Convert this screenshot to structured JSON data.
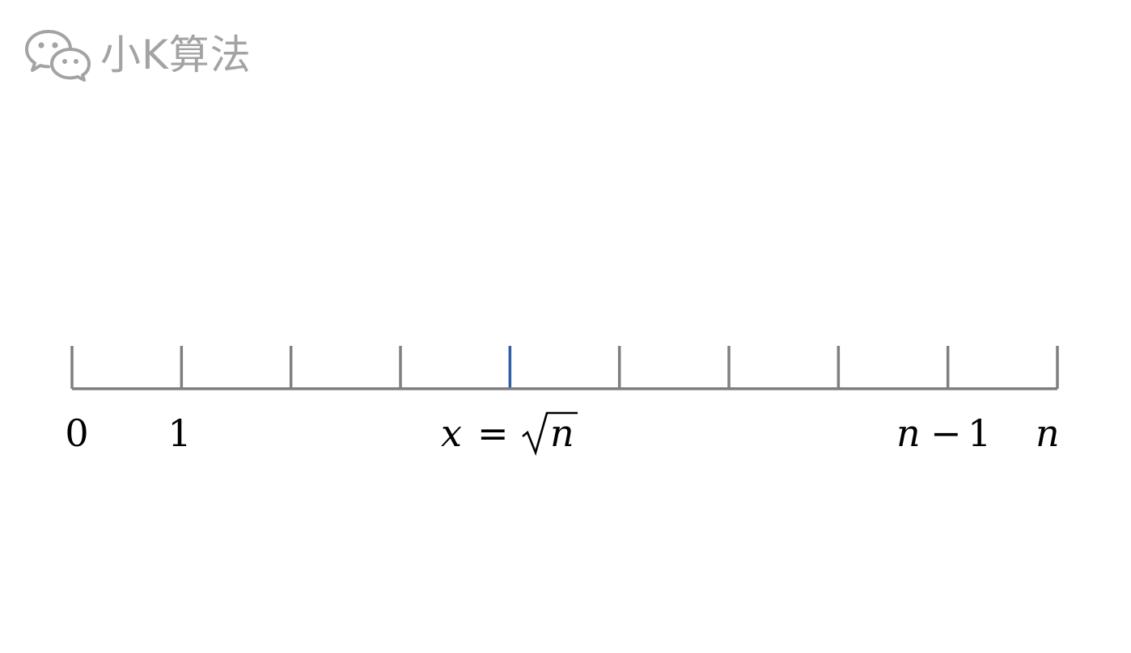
{
  "watermark": {
    "icon": "wechat-icon",
    "text": "小K算法"
  },
  "number_line": {
    "tick_count": 10,
    "highlight_tick_index": 4,
    "axis_color": "#7f7f7f",
    "highlight_color": "#2e5fa8",
    "labels": {
      "zero": "0",
      "one": "1",
      "x_var": "x",
      "equals": "=",
      "radicand": "n",
      "n_minus_var": "n",
      "minus": "−",
      "minus_one": "1",
      "n_end": "n"
    }
  }
}
